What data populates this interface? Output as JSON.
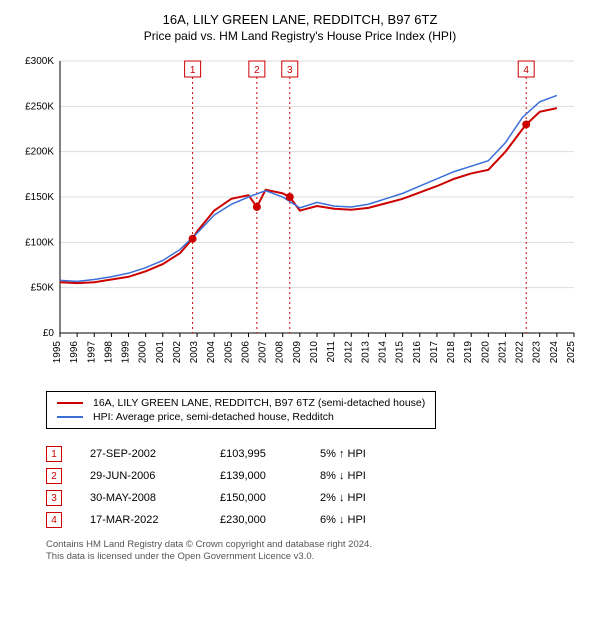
{
  "title": "16A, LILY GREEN LANE, REDDITCH, B97 6TZ",
  "subtitle": "Price paid vs. HM Land Registry's House Price Index (HPI)",
  "chart": {
    "type": "line",
    "background_color": "#ffffff",
    "grid_color": "#dddddd",
    "axis_color": "#000000",
    "label_fontsize": 10,
    "ylim": [
      0,
      300000
    ],
    "ytick_step": 50000,
    "yticks_labels": [
      "£0",
      "£50K",
      "£100K",
      "£150K",
      "£200K",
      "£250K",
      "£300K"
    ],
    "xlim": [
      1995,
      2025
    ],
    "xticks": [
      1995,
      1996,
      1997,
      1998,
      1999,
      2000,
      2001,
      2002,
      2003,
      2004,
      2005,
      2006,
      2007,
      2008,
      2009,
      2010,
      2011,
      2012,
      2013,
      2014,
      2015,
      2016,
      2017,
      2018,
      2019,
      2020,
      2021,
      2022,
      2023,
      2024,
      2025
    ],
    "series": [
      {
        "name": "property",
        "color": "#cc0000",
        "width": 2,
        "data": [
          [
            1995,
            56000
          ],
          [
            1996,
            55000
          ],
          [
            1997,
            56000
          ],
          [
            1998,
            59000
          ],
          [
            1999,
            62000
          ],
          [
            2000,
            68000
          ],
          [
            2001,
            76000
          ],
          [
            2002,
            88000
          ],
          [
            2002.74,
            103995
          ],
          [
            2003,
            112000
          ],
          [
            2004,
            135000
          ],
          [
            2005,
            148000
          ],
          [
            2006,
            152000
          ],
          [
            2006.49,
            139000
          ],
          [
            2007,
            158000
          ],
          [
            2008,
            154000
          ],
          [
            2008.41,
            150000
          ],
          [
            2009,
            135000
          ],
          [
            2010,
            140000
          ],
          [
            2011,
            137000
          ],
          [
            2012,
            136000
          ],
          [
            2013,
            138000
          ],
          [
            2014,
            143000
          ],
          [
            2015,
            148000
          ],
          [
            2016,
            155000
          ],
          [
            2017,
            162000
          ],
          [
            2018,
            170000
          ],
          [
            2019,
            176000
          ],
          [
            2020,
            180000
          ],
          [
            2021,
            200000
          ],
          [
            2022,
            225000
          ],
          [
            2022.21,
            230000
          ],
          [
            2023,
            244000
          ],
          [
            2024,
            248000
          ]
        ]
      },
      {
        "name": "hpi",
        "color": "#3a6fd8",
        "width": 1.5,
        "data": [
          [
            1995,
            58000
          ],
          [
            1996,
            57000
          ],
          [
            1997,
            59000
          ],
          [
            1998,
            62000
          ],
          [
            1999,
            66000
          ],
          [
            2000,
            72000
          ],
          [
            2001,
            80000
          ],
          [
            2002,
            92000
          ],
          [
            2003,
            110000
          ],
          [
            2004,
            130000
          ],
          [
            2005,
            142000
          ],
          [
            2006,
            150000
          ],
          [
            2007,
            157000
          ],
          [
            2008,
            150000
          ],
          [
            2009,
            138000
          ],
          [
            2010,
            144000
          ],
          [
            2011,
            140000
          ],
          [
            2012,
            139000
          ],
          [
            2013,
            142000
          ],
          [
            2014,
            148000
          ],
          [
            2015,
            154000
          ],
          [
            2016,
            162000
          ],
          [
            2017,
            170000
          ],
          [
            2018,
            178000
          ],
          [
            2019,
            184000
          ],
          [
            2020,
            190000
          ],
          [
            2021,
            210000
          ],
          [
            2022,
            238000
          ],
          [
            2023,
            255000
          ],
          [
            2024,
            262000
          ]
        ]
      }
    ],
    "event_markers": [
      {
        "n": "1",
        "x": 2002.74,
        "y": 103995
      },
      {
        "n": "2",
        "x": 2006.49,
        "y": 139000
      },
      {
        "n": "3",
        "x": 2008.41,
        "y": 150000
      },
      {
        "n": "4",
        "x": 2022.21,
        "y": 230000
      }
    ],
    "marker_line_color": "#cc0000",
    "marker_dot_color": "#cc0000",
    "marker_border_color": "#cc0000",
    "marker_text_color": "#cc0000",
    "marker_fontsize": 10
  },
  "legend": {
    "items": [
      {
        "color": "#cc0000",
        "label": "16A, LILY GREEN LANE, REDDITCH, B97 6TZ (semi-detached house)"
      },
      {
        "color": "#3a6fd8",
        "label": "HPI: Average price, semi-detached house, Redditch"
      }
    ]
  },
  "events": [
    {
      "n": "1",
      "date": "27-SEP-2002",
      "price": "£103,995",
      "delta": "5% ↑ HPI"
    },
    {
      "n": "2",
      "date": "29-JUN-2006",
      "price": "£139,000",
      "delta": "8% ↓ HPI"
    },
    {
      "n": "3",
      "date": "30-MAY-2008",
      "price": "£150,000",
      "delta": "2% ↓ HPI"
    },
    {
      "n": "4",
      "date": "17-MAR-2022",
      "price": "£230,000",
      "delta": "6% ↓ HPI"
    }
  ],
  "footnote_line1": "Contains HM Land Registry data © Crown copyright and database right 2024.",
  "footnote_line2": "This data is licensed under the Open Government Licence v3.0."
}
